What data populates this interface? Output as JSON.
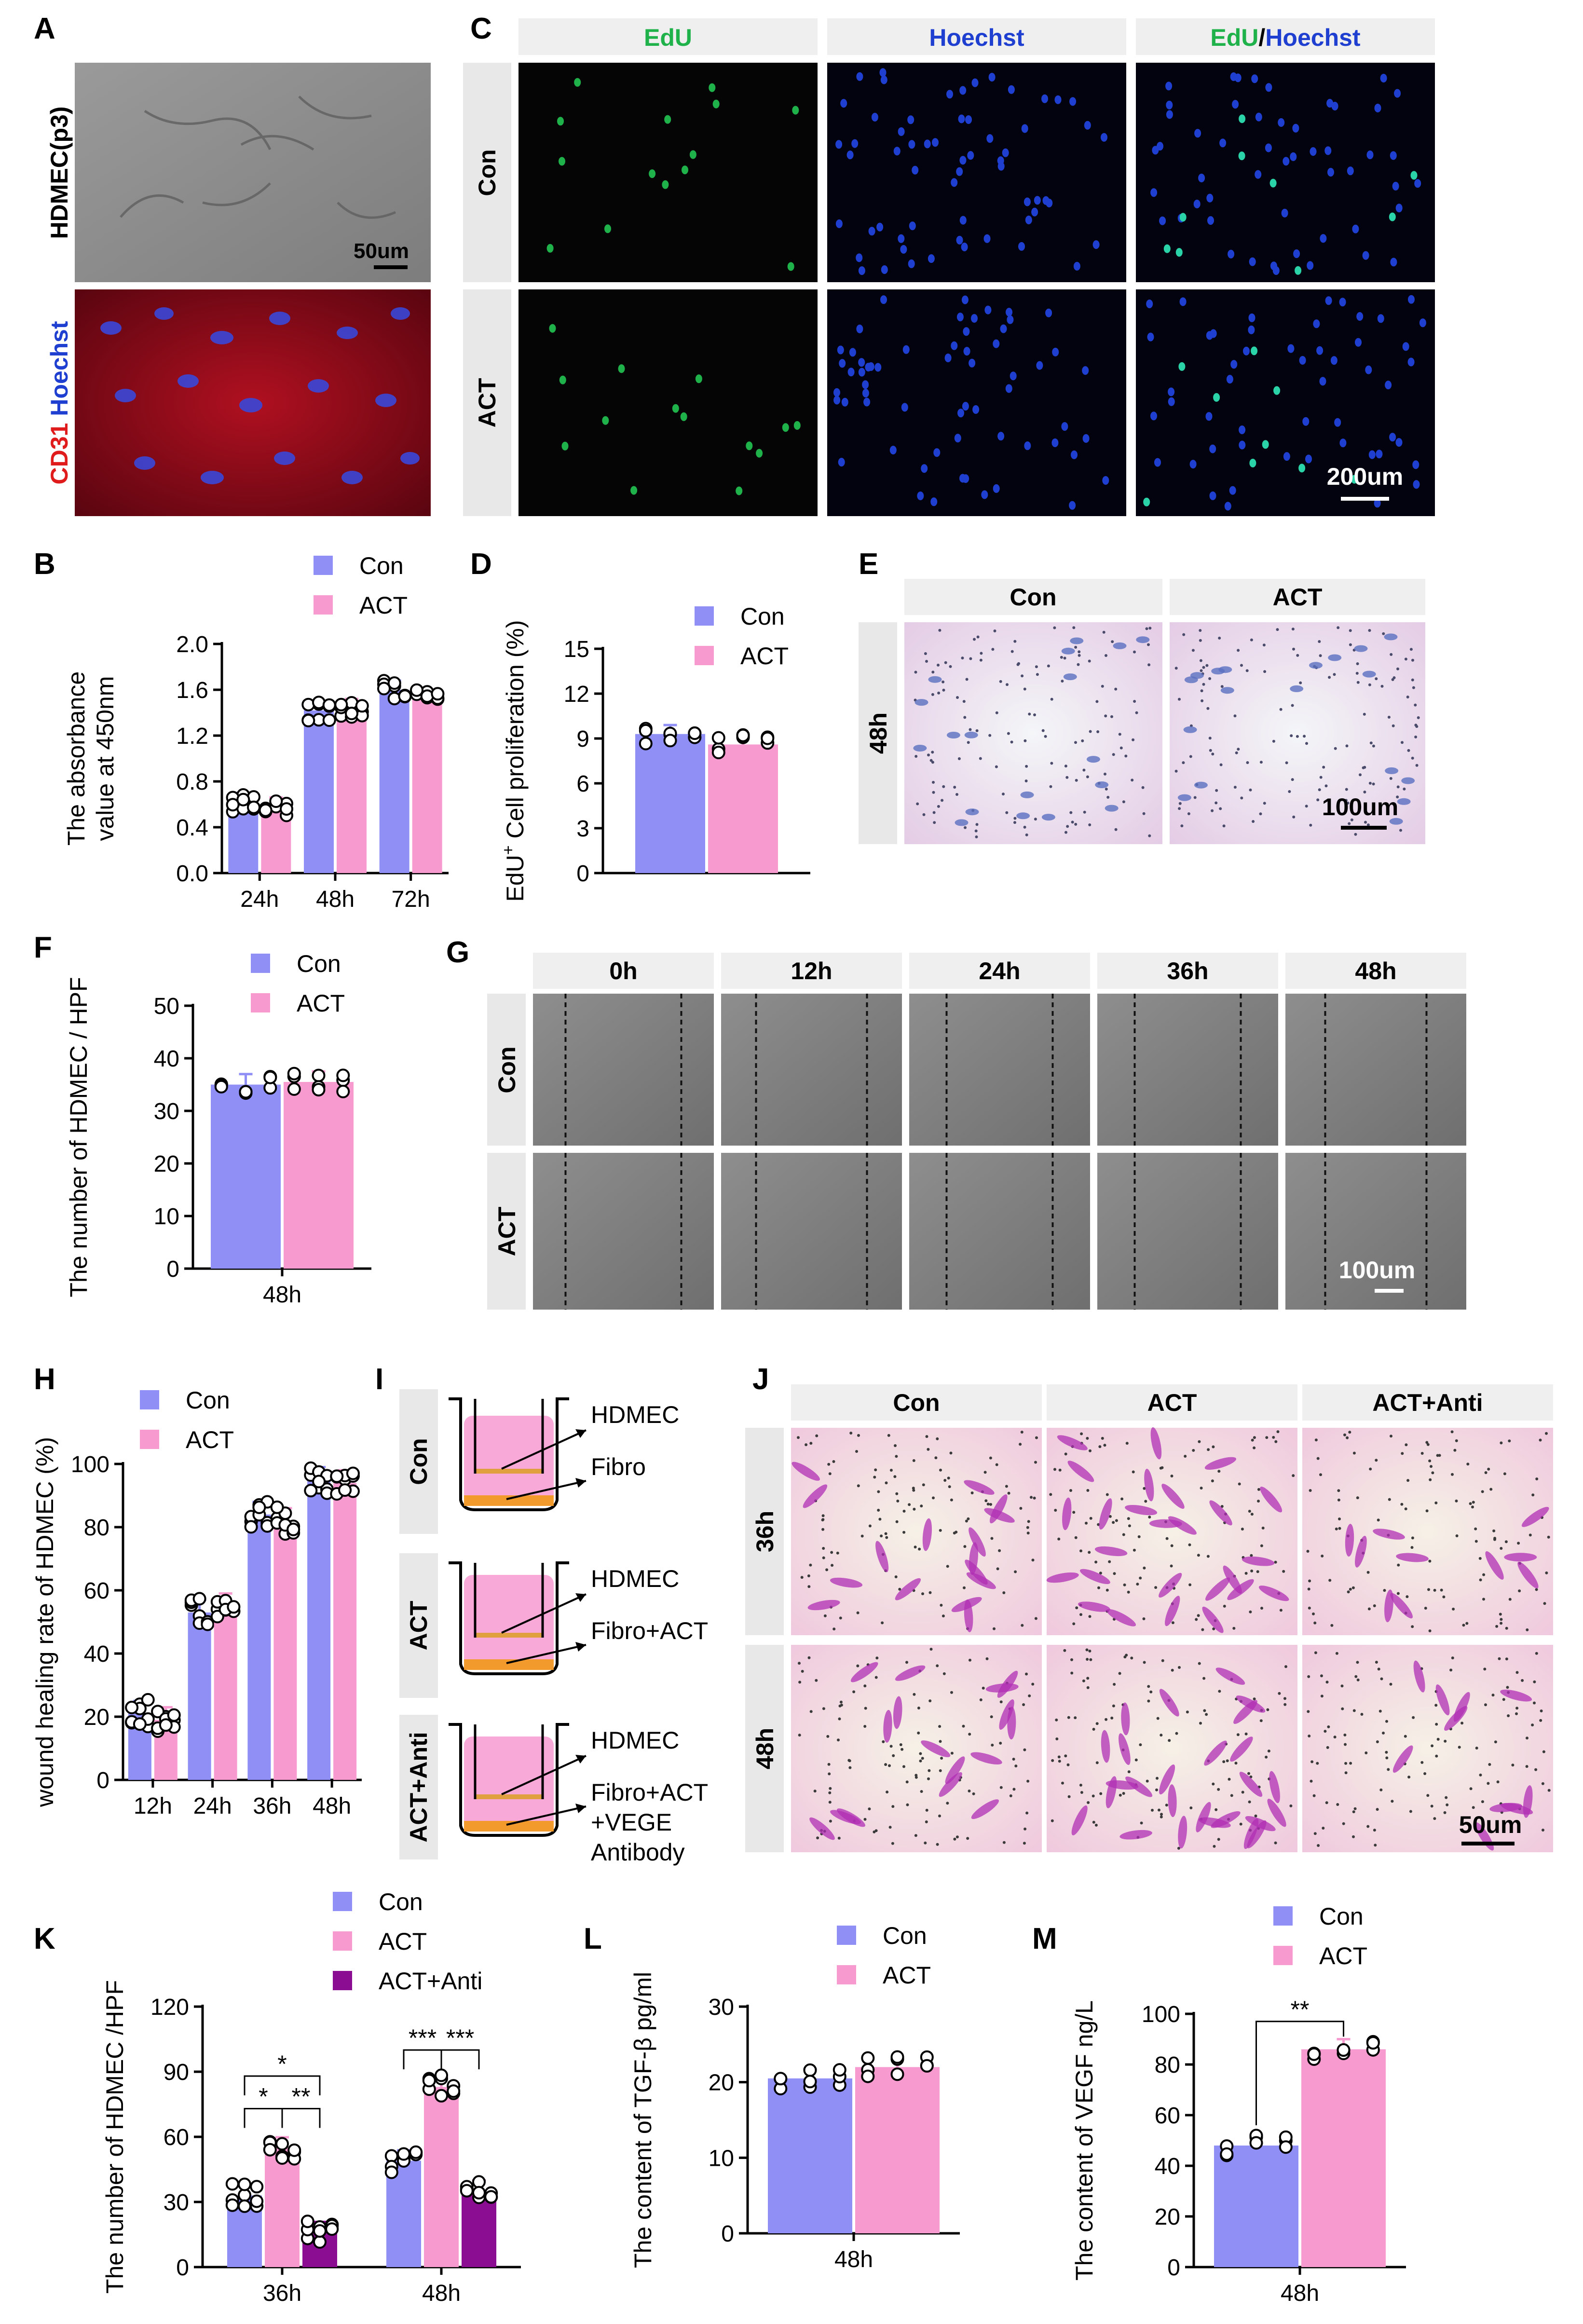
{
  "colors": {
    "con": "#8f8ff5",
    "act": "#f79ad0",
    "anti": "#8b0d91",
    "edu": "#20b24a",
    "hoechst": "#1f3fd1",
    "cd31": "#e01b1b",
    "header_bg": "#efefef",
    "row_bg": "#e8e8e8"
  },
  "panels": {
    "A": {
      "letter": "A",
      "row_labels": [
        "HDMEC(p3)",
        "CD31",
        "Hoechst"
      ],
      "scale_bar": "50um"
    },
    "C": {
      "letter": "C",
      "col_headers": [
        "EdU",
        "Hoechst"
      ],
      "merge_header": [
        "EdU",
        "/",
        "Hoechst"
      ],
      "row_labels": [
        "Con",
        "ACT"
      ],
      "scale_bar": "200um"
    },
    "E": {
      "letter": "E",
      "col_headers": [
        "Con",
        "ACT"
      ],
      "row_labels": [
        "48h"
      ],
      "scale_bar": "100um"
    },
    "G": {
      "letter": "G",
      "col_headers": [
        "0h",
        "12h",
        "24h",
        "36h",
        "48h"
      ],
      "row_labels": [
        "Con",
        "ACT"
      ],
      "scale_bar": "100um"
    },
    "I": {
      "letter": "I",
      "rows": [
        {
          "label": "Con",
          "upper": "HDMEC",
          "lower": [
            "Fibro"
          ]
        },
        {
          "label": "ACT",
          "upper": "HDMEC",
          "lower": [
            "Fibro+ACT"
          ]
        },
        {
          "label": "ACT+Anti",
          "upper": "HDMEC",
          "lower": [
            "Fibro+ACT",
            "+VEGE",
            "Antibody"
          ]
        }
      ]
    },
    "J": {
      "letter": "J",
      "col_headers": [
        "Con",
        "ACT",
        "ACT+Anti"
      ],
      "row_labels": [
        "36h",
        "48h"
      ],
      "scale_bar": "50um"
    }
  },
  "chart_data": [
    {
      "id": "B",
      "letter": "B",
      "type": "bar",
      "ylabel": [
        "The absorbance",
        "value at 450nm"
      ],
      "ylim": [
        0,
        2.0
      ],
      "yticks": [
        "0.0",
        "0.4",
        "0.8",
        "1.2",
        "1.6",
        "2.0"
      ],
      "categories": [
        "24h",
        "48h",
        "72h"
      ],
      "legend": [
        "Con",
        "ACT"
      ],
      "series": [
        {
          "name": "Con",
          "values": [
            0.62,
            1.42,
            1.6
          ]
        },
        {
          "name": "ACT",
          "values": [
            0.58,
            1.44,
            1.52
          ]
        }
      ]
    },
    {
      "id": "D",
      "letter": "D",
      "type": "bar",
      "ylabel": [
        "EdU",
        "+",
        " Cell proliferation (%)"
      ],
      "ylim": [
        0,
        15
      ],
      "yticks": [
        "0",
        "3",
        "6",
        "9",
        "12",
        "15"
      ],
      "categories": [
        ""
      ],
      "legend": [
        "Con",
        "ACT"
      ],
      "series": [
        {
          "name": "Con",
          "values": [
            9.3
          ]
        },
        {
          "name": "ACT",
          "values": [
            8.6
          ]
        }
      ]
    },
    {
      "id": "F",
      "letter": "F",
      "type": "bar",
      "ylabel": [
        "The number of HDMEC / HPF"
      ],
      "ylim": [
        0,
        50
      ],
      "yticks": [
        "0",
        "10",
        "20",
        "30",
        "40",
        "50"
      ],
      "categories": [
        "48h"
      ],
      "legend": [
        "Con",
        "ACT"
      ],
      "series": [
        {
          "name": "Con",
          "values": [
            35
          ]
        },
        {
          "name": "ACT",
          "values": [
            35.5
          ]
        }
      ]
    },
    {
      "id": "H",
      "letter": "H",
      "type": "bar",
      "ylabel": [
        "wound healing rate of HDMEC (%)"
      ],
      "ylim": [
        0,
        100
      ],
      "yticks": [
        "0",
        "20",
        "40",
        "60",
        "80",
        "100"
      ],
      "categories": [
        "12h",
        "24h",
        "36h",
        "48h"
      ],
      "legend": [
        "Con",
        "ACT"
      ],
      "series": [
        {
          "name": "Con",
          "values": [
            21,
            53,
            84,
            95
          ]
        },
        {
          "name": "ACT",
          "values": [
            19,
            55,
            82,
            94
          ]
        }
      ]
    },
    {
      "id": "K",
      "letter": "K",
      "type": "bar",
      "ylabel": [
        "The number of HDMEC /HPF"
      ],
      "ylim": [
        0,
        120
      ],
      "yticks": [
        "0",
        "30",
        "60",
        "90",
        "120"
      ],
      "categories": [
        "36h",
        "48h"
      ],
      "legend": [
        "Con",
        "ACT",
        "ACT+Anti"
      ],
      "series": [
        {
          "name": "Con",
          "values": [
            33,
            49
          ]
        },
        {
          "name": "ACT",
          "values": [
            55,
            83
          ]
        },
        {
          "name": "ACT+Anti",
          "values": [
            16,
            35
          ]
        }
      ],
      "significance": [
        "*",
        "*",
        "**",
        "***",
        "***"
      ]
    },
    {
      "id": "L",
      "letter": "L",
      "type": "bar",
      "ylabel": [
        "The content of TGF-β pg/ml"
      ],
      "ylim": [
        0,
        30
      ],
      "yticks": [
        "0",
        "10",
        "20",
        "30"
      ],
      "categories": [
        "48h"
      ],
      "legend": [
        "Con",
        "ACT"
      ],
      "series": [
        {
          "name": "Con",
          "values": [
            20.5
          ]
        },
        {
          "name": "ACT",
          "values": [
            22
          ]
        }
      ]
    },
    {
      "id": "M",
      "letter": "M",
      "type": "bar",
      "ylabel": [
        "The content of VEGF ng/L"
      ],
      "ylim": [
        0,
        100
      ],
      "yticks": [
        "0",
        "20",
        "40",
        "60",
        "80",
        "100"
      ],
      "categories": [
        "48h"
      ],
      "legend": [
        "Con",
        "ACT"
      ],
      "series": [
        {
          "name": "Con",
          "values": [
            48
          ]
        },
        {
          "name": "ACT",
          "values": [
            86
          ]
        }
      ],
      "significance": [
        "**"
      ]
    }
  ]
}
